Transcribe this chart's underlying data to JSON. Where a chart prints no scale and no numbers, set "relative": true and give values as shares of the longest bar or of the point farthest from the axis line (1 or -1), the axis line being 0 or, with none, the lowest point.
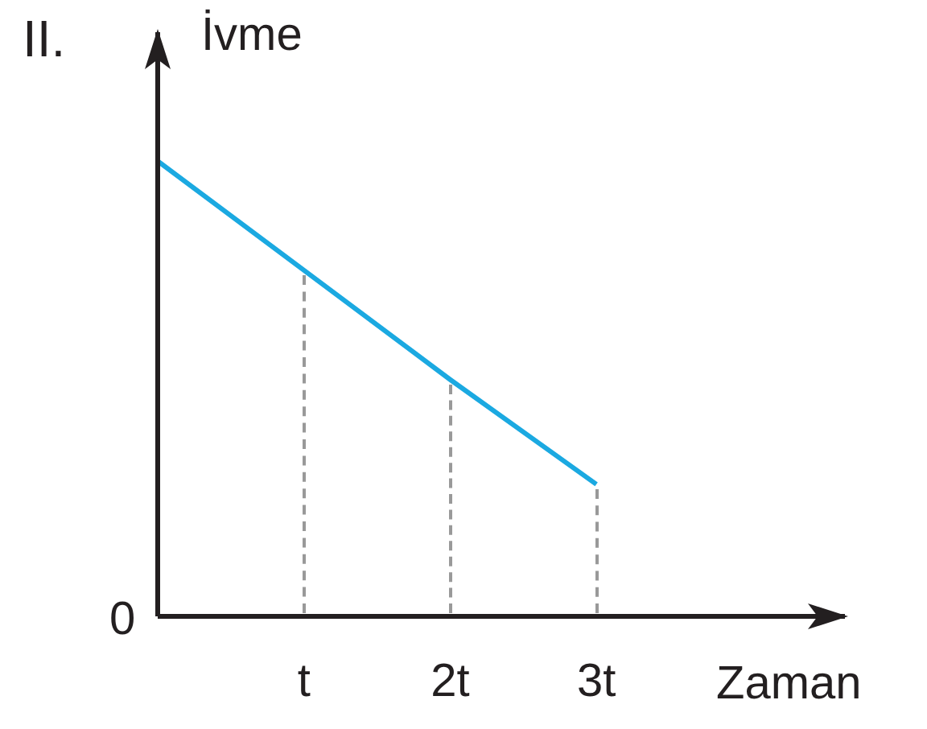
{
  "chart_data": {
    "type": "line",
    "title": "II.",
    "xlabel": "Zaman",
    "ylabel": "İvme",
    "relative": true,
    "xlim": [
      0,
      4.7
    ],
    "xticks": [
      {
        "value": 1,
        "label": "t"
      },
      {
        "value": 2,
        "label": "2t"
      },
      {
        "value": 3,
        "label": "3t"
      }
    ],
    "series": [
      {
        "color": "#1ba9e1",
        "x": [
          0,
          1,
          2,
          3
        ],
        "values": [
          1,
          0.76,
          0.52,
          0.29
        ]
      }
    ],
    "annotations": [
      "0"
    ],
    "marker": "none",
    "legend": false
  }
}
